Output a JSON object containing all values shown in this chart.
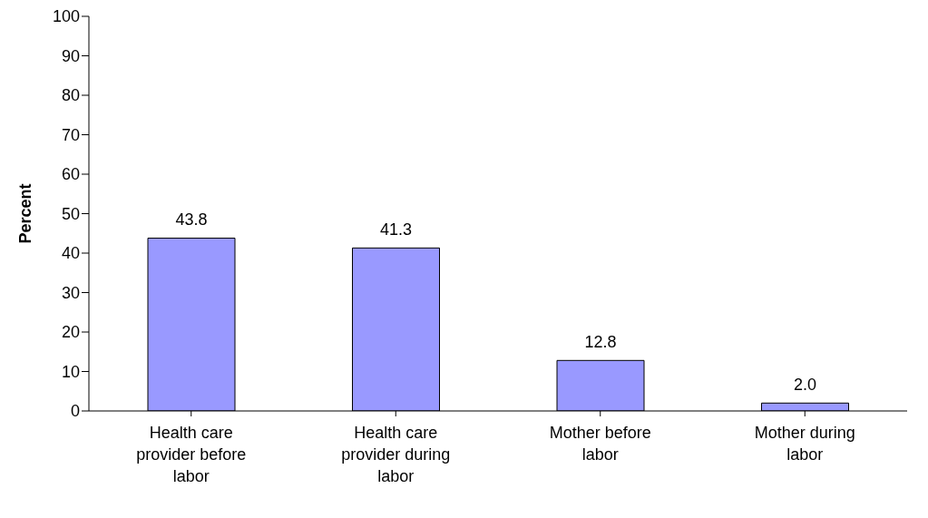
{
  "chart_data": {
    "type": "bar",
    "ylabel": "Percent",
    "categories": [
      "Health care provider before labor",
      "Health care provider during labor",
      "Mother before labor",
      "Mother during labor"
    ],
    "values": [
      43.8,
      41.3,
      12.8,
      2.0
    ],
    "color": "#9999ff",
    "ylim": [
      0,
      100
    ],
    "yticks": [
      0,
      10,
      20,
      30,
      40,
      50,
      60,
      70,
      80,
      90,
      100
    ],
    "value_labels": [
      "43.8",
      "41.3",
      "12.8",
      "2.0"
    ],
    "grid": false,
    "legend": false
  }
}
